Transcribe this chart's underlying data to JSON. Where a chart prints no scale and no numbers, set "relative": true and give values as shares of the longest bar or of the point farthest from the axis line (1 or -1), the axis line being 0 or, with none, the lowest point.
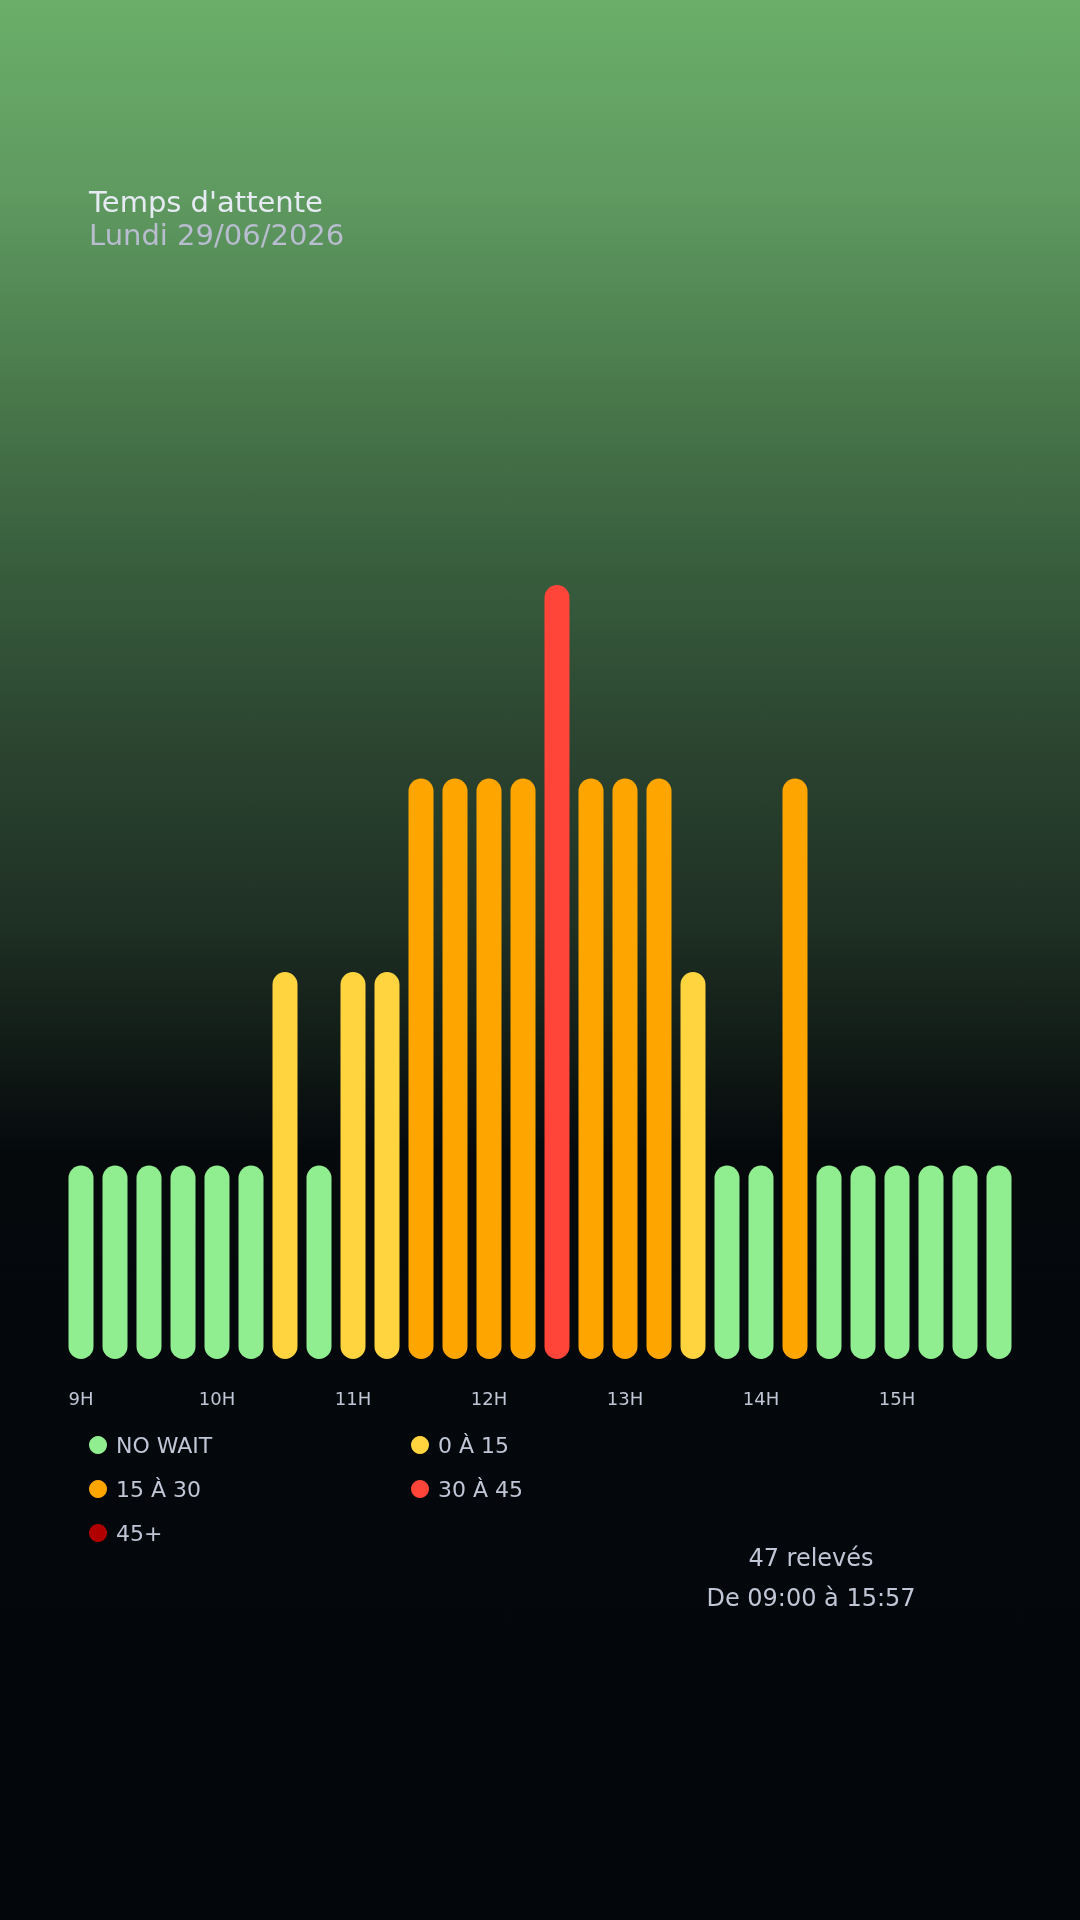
{
  "chart_data": {
    "type": "bar",
    "title": "Temps d'attente",
    "subtitle": "Lundi 29/06/2026",
    "categories": [
      "9H",
      null,
      null,
      null,
      "10H",
      null,
      null,
      null,
      "11H",
      null,
      null,
      null,
      "12H",
      null,
      null,
      null,
      "13H",
      null,
      null,
      null,
      "14H",
      null,
      null,
      null,
      "15H",
      null,
      null,
      null
    ],
    "series": [
      {
        "name": "NO WAIT",
        "color": "#90ee90",
        "values": [
          0.25,
          0.25,
          0.25,
          0.25,
          0.25,
          0.25,
          null,
          0.25,
          null,
          null,
          null,
          null,
          null,
          null,
          null,
          null,
          null,
          null,
          null,
          0.25,
          0.25,
          null,
          0.25,
          0.25,
          0.25,
          0.25,
          0.25,
          0.25
        ]
      },
      {
        "name": "0 À 15",
        "color": "#ffd43f",
        "values": [
          null,
          null,
          null,
          null,
          null,
          null,
          0.5,
          null,
          0.5,
          0.5,
          null,
          null,
          null,
          null,
          null,
          null,
          null,
          null,
          0.5,
          null,
          null,
          null,
          null,
          null,
          null,
          null,
          null,
          null
        ]
      },
      {
        "name": "15 À 30",
        "color": "#ffa500",
        "values": [
          null,
          null,
          null,
          null,
          null,
          null,
          null,
          null,
          null,
          null,
          0.75,
          0.75,
          0.75,
          0.75,
          null,
          0.75,
          0.75,
          0.75,
          null,
          null,
          null,
          0.75,
          null,
          null,
          null,
          null,
          null,
          null
        ]
      },
      {
        "name": "30 À 45",
        "color": "#ff453a",
        "values": [
          null,
          null,
          null,
          null,
          null,
          null,
          null,
          null,
          null,
          null,
          null,
          null,
          null,
          null,
          1,
          null,
          null,
          null,
          null,
          null,
          null,
          null,
          null,
          null,
          null,
          null,
          null,
          null
        ]
      },
      {
        "name": "45+",
        "color": "#b00000",
        "values": [
          null,
          null,
          null,
          null,
          null,
          null,
          null,
          null,
          null,
          null,
          null,
          null,
          null,
          null,
          null,
          null,
          null,
          null,
          null,
          null,
          null,
          null,
          null,
          null,
          null,
          null,
          null,
          null
        ]
      }
    ],
    "stacked": true,
    "relative": true,
    "legend": "bottom left",
    "annotations": [
      "47 relevés",
      "De 09:00 à 15:57"
    ]
  }
}
